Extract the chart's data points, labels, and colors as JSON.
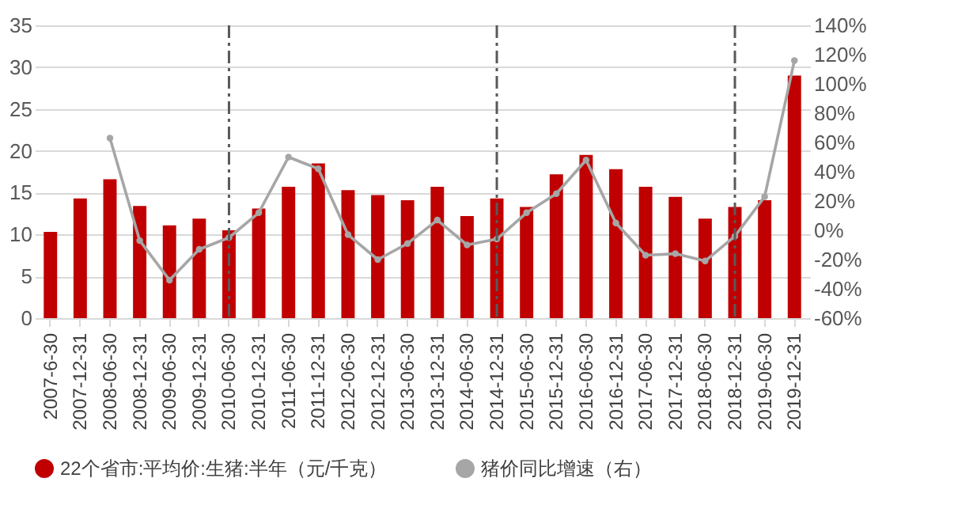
{
  "chart_data": {
    "type": "bar",
    "categories": [
      "2007-6-30",
      "2007-12-31",
      "2008-06-30",
      "2008-12-31",
      "2009-06-30",
      "2009-12-31",
      "2010-06-30",
      "2010-12-31",
      "2011-06-30",
      "2011-12-31",
      "2012-06-30",
      "2012-12-31",
      "2013-06-30",
      "2013-12-31",
      "2014-06-30",
      "2014-12-31",
      "2015-06-30",
      "2015-12-31",
      "2016-06-30",
      "2016-12-31",
      "2017-06-30",
      "2017-12-31",
      "2018-06-30",
      "2018-12-31",
      "2019-06-30",
      "2019-12-31"
    ],
    "series": [
      {
        "name": "22个省市:平均价:生猪:半年（元/千克）",
        "color": "#c00000",
        "values": [
          10.3,
          14.3,
          16.6,
          13.4,
          11.1,
          11.9,
          10.5,
          13.1,
          15.7,
          18.5,
          15.3,
          14.7,
          14.1,
          15.7,
          12.2,
          14.3,
          13.3,
          17.2,
          19.5,
          17.8,
          15.7,
          14.5,
          11.9,
          13.3,
          14.1,
          29.0
        ]
      },
      {
        "name": "猪价同比增速（右）",
        "type": "line",
        "axis": "y2",
        "color": "#a6a6a6",
        "marker": "circle",
        "values": [
          null,
          null,
          63,
          -7,
          -34,
          -13,
          -5,
          12,
          50,
          42,
          -3,
          -20,
          -9,
          7,
          -10,
          -6,
          12,
          25,
          48,
          5,
          -17,
          -16,
          -21,
          -4,
          23,
          116
        ]
      }
    ],
    "ylim": [
      0,
      35
    ],
    "yticks": [
      0,
      5,
      10,
      15,
      20,
      25,
      30,
      35
    ],
    "y2lim": [
      -60,
      140
    ],
    "y2ticks": [
      {
        "value": -60,
        "label": "-60%"
      },
      {
        "value": -40,
        "label": "-40%"
      },
      {
        "value": -20,
        "label": "-20%"
      },
      {
        "value": 0,
        "label": "0%"
      },
      {
        "value": 20,
        "label": "20%"
      },
      {
        "value": 40,
        "label": "40%"
      },
      {
        "value": 60,
        "label": "60%"
      },
      {
        "value": 80,
        "label": "80%"
      },
      {
        "value": 100,
        "label": "100%"
      },
      {
        "value": 120,
        "label": "120%"
      },
      {
        "value": 140,
        "label": "140%"
      }
    ],
    "ref_lines": [
      {
        "axis": "x",
        "value": "2010-06-30",
        "color": "#595959",
        "line_style": "dashed"
      },
      {
        "axis": "x",
        "value": "2014-12-31",
        "color": "#595959",
        "line_style": "dashed"
      },
      {
        "axis": "x",
        "value": "2018-12-31",
        "color": "#595959",
        "line_style": "dashed"
      }
    ],
    "grid": "y",
    "legend": "bottom"
  }
}
